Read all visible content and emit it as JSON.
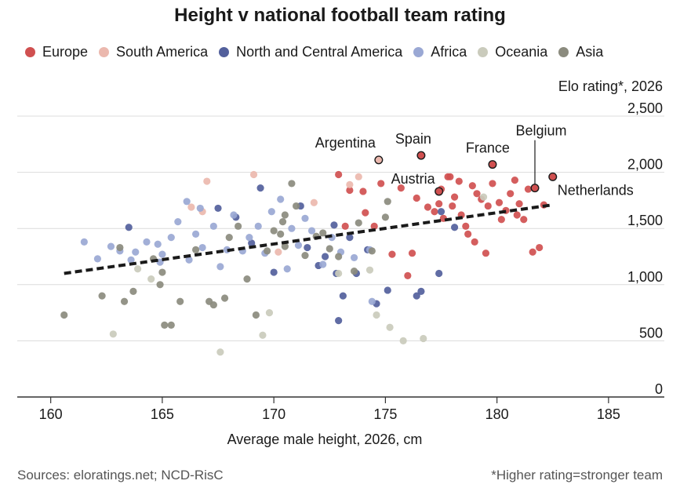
{
  "chart_data": {
    "type": "scatter",
    "title": "Height v national football team rating",
    "xlabel": "Average male height, 2026, cm",
    "ylabel": "Elo rating*, 2026",
    "xlim": [
      158.5,
      187.5
    ],
    "ylim": [
      0,
      2500
    ],
    "xticks": [
      160,
      165,
      170,
      175,
      180,
      185
    ],
    "yticks": [
      0,
      500,
      1000,
      1500,
      2000,
      2500
    ],
    "ytick_labels": [
      "0",
      "500",
      "1,000",
      "1,500",
      "2,000",
      "2,500"
    ],
    "grid": "horizontal",
    "legend_position": "top",
    "trendline": {
      "x": [
        160.6,
        182.5
      ],
      "y": [
        1100,
        1710
      ],
      "style": "dashed"
    },
    "series": [
      {
        "name": "Europe",
        "color": "#d05050",
        "points": [
          [
            174.8,
            1900
          ],
          [
            175.7,
            1860
          ],
          [
            176.4,
            1770
          ],
          [
            176.9,
            1690
          ],
          [
            177.2,
            1650
          ],
          [
            177.4,
            1720
          ],
          [
            177.6,
            1590
          ],
          [
            177.8,
            1960
          ],
          [
            178.1,
            1780
          ],
          [
            178.4,
            1620
          ],
          [
            178.6,
            1520
          ],
          [
            178.9,
            1880
          ],
          [
            179.1,
            1810
          ],
          [
            179.3,
            1760
          ],
          [
            179.6,
            1700
          ],
          [
            179.8,
            1900
          ],
          [
            180.1,
            1730
          ],
          [
            180.4,
            1660
          ],
          [
            180.6,
            1810
          ],
          [
            180.9,
            1620
          ],
          [
            181.2,
            1580
          ],
          [
            181.4,
            1850
          ],
          [
            181.6,
            1290
          ],
          [
            181.9,
            1330
          ],
          [
            182.1,
            1710
          ],
          [
            177.5,
            1850
          ],
          [
            178.0,
            1700
          ],
          [
            178.3,
            1920
          ],
          [
            178.7,
            1450
          ],
          [
            179.0,
            1380
          ],
          [
            179.5,
            1280
          ],
          [
            180.2,
            1580
          ],
          [
            180.8,
            1930
          ],
          [
            181.0,
            1720
          ],
          [
            174.1,
            1640
          ],
          [
            174.5,
            1520
          ],
          [
            175.3,
            1270
          ],
          [
            176.2,
            1280
          ],
          [
            172.9,
            1980
          ],
          [
            173.4,
            1840
          ],
          [
            174.0,
            1830
          ],
          [
            176.0,
            1080
          ],
          [
            173.2,
            1520
          ],
          [
            177.9,
            1960
          ]
        ]
      },
      {
        "name": "South America",
        "color": "#ebb8ae",
        "points": [
          [
            166.3,
            1690
          ],
          [
            166.8,
            1650
          ],
          [
            167.0,
            1920
          ],
          [
            169.1,
            1980
          ],
          [
            170.2,
            1290
          ],
          [
            171.8,
            1730
          ],
          [
            173.4,
            1890
          ],
          [
            173.8,
            1960
          ]
        ]
      },
      {
        "name": "North and Central America",
        "color": "#53609c",
        "points": [
          [
            163.5,
            1510
          ],
          [
            167.5,
            1680
          ],
          [
            168.3,
            1600
          ],
          [
            169.0,
            1370
          ],
          [
            169.4,
            1860
          ],
          [
            170.0,
            1110
          ],
          [
            171.2,
            1700
          ],
          [
            171.5,
            1330
          ],
          [
            172.0,
            1170
          ],
          [
            172.3,
            1250
          ],
          [
            172.7,
            1530
          ],
          [
            172.8,
            1100
          ],
          [
            172.9,
            680
          ],
          [
            173.1,
            900
          ],
          [
            173.4,
            1420
          ],
          [
            173.7,
            1100
          ],
          [
            174.2,
            1310
          ],
          [
            174.6,
            830
          ],
          [
            175.1,
            950
          ],
          [
            176.4,
            900
          ],
          [
            176.6,
            940
          ],
          [
            177.4,
            1100
          ],
          [
            177.5,
            1650
          ],
          [
            178.1,
            1510
          ]
        ]
      },
      {
        "name": "Africa",
        "color": "#9aa8d4",
        "points": [
          [
            161.5,
            1380
          ],
          [
            162.1,
            1230
          ],
          [
            162.7,
            1340
          ],
          [
            163.1,
            1300
          ],
          [
            163.8,
            1290
          ],
          [
            164.3,
            1380
          ],
          [
            164.8,
            1360
          ],
          [
            165.0,
            1270
          ],
          [
            165.4,
            1420
          ],
          [
            165.7,
            1560
          ],
          [
            166.1,
            1740
          ],
          [
            166.2,
            1220
          ],
          [
            166.5,
            1450
          ],
          [
            166.8,
            1330
          ],
          [
            167.3,
            1520
          ],
          [
            167.6,
            1160
          ],
          [
            167.9,
            1310
          ],
          [
            168.2,
            1620
          ],
          [
            168.6,
            1300
          ],
          [
            168.9,
            1420
          ],
          [
            169.3,
            1520
          ],
          [
            169.6,
            1280
          ],
          [
            169.9,
            1650
          ],
          [
            170.3,
            1760
          ],
          [
            170.6,
            1140
          ],
          [
            170.8,
            1500
          ],
          [
            171.1,
            1350
          ],
          [
            171.4,
            1590
          ],
          [
            171.7,
            1480
          ],
          [
            172.2,
            1180
          ],
          [
            172.6,
            1420
          ],
          [
            173.0,
            1290
          ],
          [
            173.6,
            1240
          ],
          [
            174.3,
            1310
          ],
          [
            174.4,
            850
          ],
          [
            163.6,
            1220
          ],
          [
            164.9,
            1200
          ],
          [
            166.7,
            1680
          ]
        ]
      },
      {
        "name": "Oceania",
        "color": "#cacbbc",
        "points": [
          [
            162.8,
            560
          ],
          [
            163.9,
            1140
          ],
          [
            164.5,
            1050
          ],
          [
            167.6,
            400
          ],
          [
            169.5,
            550
          ],
          [
            169.8,
            750
          ],
          [
            172.9,
            1100
          ],
          [
            174.3,
            1130
          ],
          [
            174.6,
            730
          ],
          [
            175.2,
            620
          ],
          [
            175.8,
            500
          ],
          [
            176.7,
            520
          ],
          [
            179.4,
            1780
          ]
        ]
      },
      {
        "name": "Asia",
        "color": "#8b8b7e",
        "points": [
          [
            160.6,
            730
          ],
          [
            162.3,
            900
          ],
          [
            163.1,
            1330
          ],
          [
            163.3,
            850
          ],
          [
            163.7,
            940
          ],
          [
            164.6,
            1230
          ],
          [
            164.9,
            1000
          ],
          [
            165.0,
            1110
          ],
          [
            165.1,
            640
          ],
          [
            165.4,
            640
          ],
          [
            165.8,
            850
          ],
          [
            166.5,
            1310
          ],
          [
            167.1,
            850
          ],
          [
            167.3,
            820
          ],
          [
            167.8,
            880
          ],
          [
            168.0,
            1420
          ],
          [
            168.4,
            1520
          ],
          [
            168.8,
            1050
          ],
          [
            169.2,
            730
          ],
          [
            169.7,
            1300
          ],
          [
            170.0,
            1480
          ],
          [
            170.4,
            1560
          ],
          [
            170.5,
            1340
          ],
          [
            170.8,
            1900
          ],
          [
            171.0,
            1700
          ],
          [
            171.4,
            1260
          ],
          [
            171.9,
            1430
          ],
          [
            172.2,
            1460
          ],
          [
            172.5,
            1320
          ],
          [
            172.9,
            1250
          ],
          [
            173.6,
            1120
          ],
          [
            173.8,
            1550
          ],
          [
            174.4,
            1300
          ],
          [
            175.0,
            1600
          ],
          [
            175.1,
            1740
          ],
          [
            170.3,
            1450
          ],
          [
            170.5,
            1620
          ]
        ]
      }
    ],
    "annotations": [
      {
        "label": "Argentina",
        "x": 174.7,
        "y": 2110
      },
      {
        "label": "Spain",
        "x": 176.6,
        "y": 2150
      },
      {
        "label": "France",
        "x": 179.8,
        "y": 2070
      },
      {
        "label": "Belgium",
        "x": 181.7,
        "y": 1860
      },
      {
        "label": "Austria",
        "x": 177.4,
        "y": 1830
      },
      {
        "label": "Netherlands",
        "x": 182.5,
        "y": 1960
      }
    ]
  },
  "footer": {
    "sources": "Sources: eloratings.net; NCD-RisC",
    "note": "*Higher rating=stronger team"
  }
}
